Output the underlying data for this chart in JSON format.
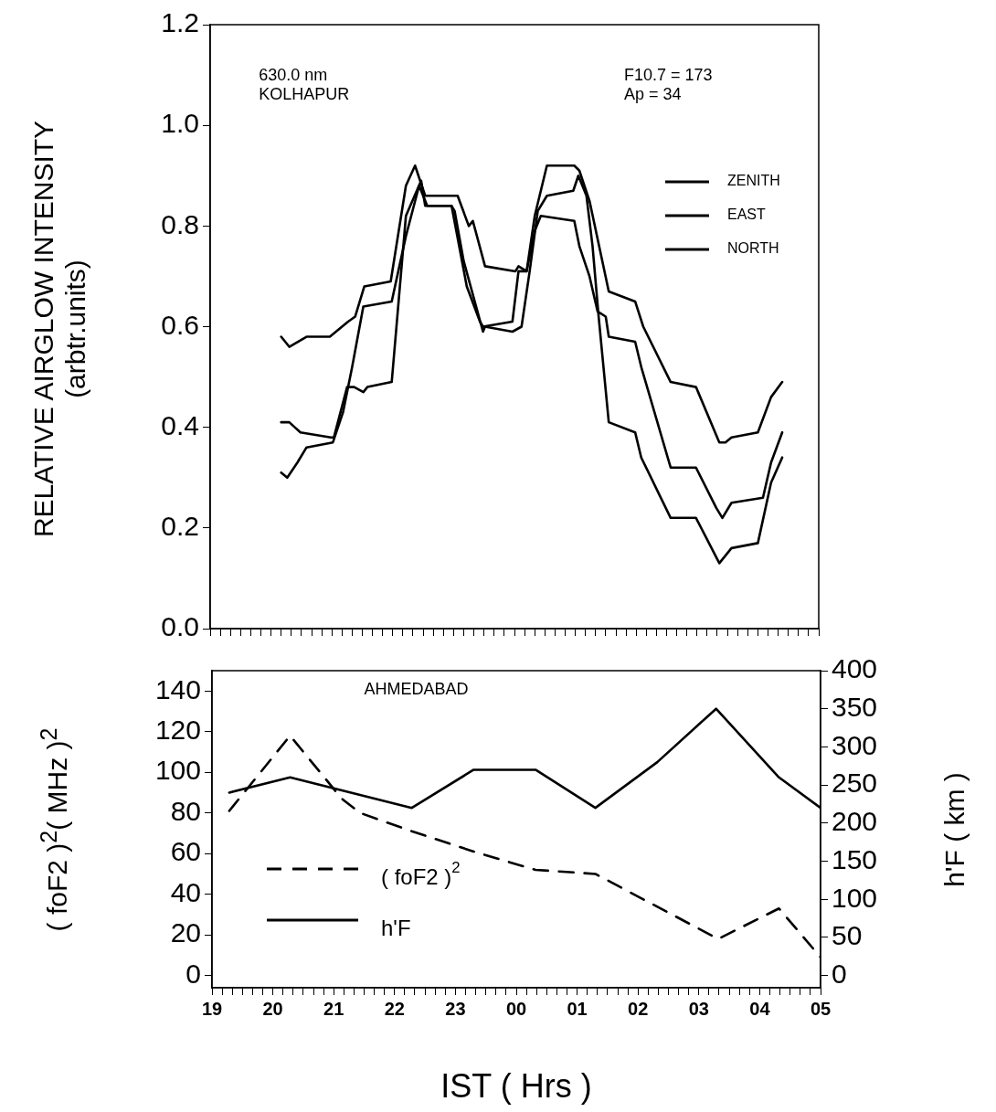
{
  "chart_data": [
    {
      "type": "line",
      "ylabel": "RELATIVE AIRGLOW INTENSITY\n(arbtr.units)",
      "annotations": [
        "630.0 nm\nKOLHAPUR",
        "F10.7 = 173\nAp = 34"
      ],
      "legend": "top right",
      "tick_labels": "y",
      "xlim": [
        "2000-01-01T19:00",
        "2000-01-02T05:00"
      ],
      "ylim": [
        0,
        1.2
      ],
      "yticks": [
        {
          "value": 0,
          "label": "0.0"
        },
        0.2,
        0.4,
        0.6,
        0.8,
        {
          "value": 1,
          "label": "1.0"
        },
        1.2
      ],
      "xticks": [
        {
          "value": "2000-01-01T19:00",
          "label": null
        },
        {
          "value": "2000-01-01T19:10",
          "label": null
        },
        {
          "value": "2000-01-01T19:20",
          "label": null
        },
        {
          "value": "2000-01-01T19:30",
          "label": null
        },
        {
          "value": "2000-01-01T19:40",
          "label": null
        },
        {
          "value": "2000-01-01T19:50",
          "label": null
        },
        {
          "value": "2000-01-01T20:00",
          "label": null
        },
        {
          "value": "2000-01-01T20:10",
          "label": null
        },
        {
          "value": "2000-01-01T20:20",
          "label": null
        },
        {
          "value": "2000-01-01T20:30",
          "label": null
        },
        {
          "value": "2000-01-01T20:40",
          "label": null
        },
        {
          "value": "2000-01-01T20:50",
          "label": null
        },
        {
          "value": "2000-01-01T21:00",
          "label": null
        },
        {
          "value": "2000-01-01T21:10",
          "label": null
        },
        {
          "value": "2000-01-01T21:20",
          "label": null
        },
        {
          "value": "2000-01-01T21:30",
          "label": null
        },
        {
          "value": "2000-01-01T21:40",
          "label": null
        },
        {
          "value": "2000-01-01T21:50",
          "label": null
        },
        {
          "value": "2000-01-01T22:00",
          "label": null
        },
        {
          "value": "2000-01-01T22:10",
          "label": null
        },
        {
          "value": "2000-01-01T22:20",
          "label": null
        },
        {
          "value": "2000-01-01T22:30",
          "label": null
        },
        {
          "value": "2000-01-01T22:40",
          "label": null
        },
        {
          "value": "2000-01-01T22:50",
          "label": null
        },
        {
          "value": "2000-01-01T23:00",
          "label": null
        },
        {
          "value": "2000-01-01T23:10",
          "label": null
        },
        {
          "value": "2000-01-01T23:20",
          "label": null
        },
        {
          "value": "2000-01-01T23:30",
          "label": null
        },
        {
          "value": "2000-01-01T23:40",
          "label": null
        },
        {
          "value": "2000-01-01T23:50",
          "label": null
        },
        {
          "value": "2000-01-02T00:00",
          "label": null
        },
        {
          "value": "2000-01-02T00:10",
          "label": null
        },
        {
          "value": "2000-01-02T00:20",
          "label": null
        },
        {
          "value": "2000-01-02T00:30",
          "label": null
        },
        {
          "value": "2000-01-02T00:40",
          "label": null
        },
        {
          "value": "2000-01-02T00:50",
          "label": null
        },
        {
          "value": "2000-01-02T01:00",
          "label": null
        },
        {
          "value": "2000-01-02T01:10",
          "label": null
        },
        {
          "value": "2000-01-02T01:20",
          "label": null
        },
        {
          "value": "2000-01-02T01:30",
          "label": null
        },
        {
          "value": "2000-01-02T01:40",
          "label": null
        },
        {
          "value": "2000-01-02T01:50",
          "label": null
        },
        {
          "value": "2000-01-02T02:00",
          "label": null
        },
        {
          "value": "2000-01-02T02:10",
          "label": null
        },
        {
          "value": "2000-01-02T02:20",
          "label": null
        },
        {
          "value": "2000-01-02T02:30",
          "label": null
        },
        {
          "value": "2000-01-02T02:40",
          "label": null
        },
        {
          "value": "2000-01-02T02:50",
          "label": null
        },
        {
          "value": "2000-01-02T03:00",
          "label": null
        },
        {
          "value": "2000-01-02T03:10",
          "label": null
        },
        {
          "value": "2000-01-02T03:20",
          "label": null
        },
        {
          "value": "2000-01-02T03:30",
          "label": null
        },
        {
          "value": "2000-01-02T03:40",
          "label": null
        },
        {
          "value": "2000-01-02T03:50",
          "label": null
        },
        {
          "value": "2000-01-02T04:00",
          "label": null
        },
        {
          "value": "2000-01-02T04:10",
          "label": null
        },
        {
          "value": "2000-01-02T04:20",
          "label": null
        },
        {
          "value": "2000-01-02T04:30",
          "label": null
        },
        {
          "value": "2000-01-02T04:40",
          "label": null
        },
        {
          "value": "2000-01-02T04:50",
          "label": null
        },
        {
          "value": "2000-01-02T05:00",
          "label": null
        }
      ],
      "series": [
        {
          "name": "ZENITH",
          "color": "#000000",
          "x": [
            "2000-01-01T20:10",
            "2000-01-01T20:18",
            "2000-01-01T20:35",
            "2000-01-01T20:58",
            "2000-01-01T21:16",
            "2000-01-01T21:23",
            "2000-01-01T21:32",
            "2000-01-01T21:58",
            "2000-01-01T22:13",
            "2000-01-01T22:22",
            "2000-01-01T22:32",
            "2000-01-01T23:04",
            "2000-01-01T23:15",
            "2000-01-01T23:19",
            "2000-01-01T23:31",
            "2000-01-02T00:01",
            "2000-01-02T00:04",
            "2000-01-02T00:12",
            "2000-01-02T00:20",
            "2000-01-02T00:32",
            "2000-01-02T00:59",
            "2000-01-02T01:04",
            "2000-01-02T01:14",
            "2000-01-02T01:33",
            "2000-01-02T01:59",
            "2000-01-02T02:07",
            "2000-01-02T02:34",
            "2000-01-02T02:59",
            "2000-01-02T03:22",
            "2000-01-02T03:28",
            "2000-01-02T03:34",
            "2000-01-02T04:00",
            "2000-01-02T04:13",
            "2000-01-02T04:24"
          ],
          "values": [
            0.58,
            0.56,
            0.58,
            0.58,
            0.61,
            0.62,
            0.68,
            0.69,
            0.88,
            0.92,
            0.86,
            0.86,
            0.8,
            0.81,
            0.72,
            0.71,
            0.72,
            0.71,
            0.82,
            0.92,
            0.92,
            0.91,
            0.85,
            0.67,
            0.65,
            0.6,
            0.49,
            0.48,
            0.37,
            0.37,
            0.38,
            0.39,
            0.46,
            0.49
          ]
        },
        {
          "name": "EAST",
          "color": "#000000",
          "x": [
            "2000-01-01T20:10",
            "2000-01-01T20:16",
            "2000-01-01T20:26",
            "2000-01-01T20:35",
            "2000-01-01T21:01",
            "2000-01-01T21:11",
            "2000-01-01T21:20",
            "2000-01-01T21:31",
            "2000-01-01T21:59",
            "2000-01-01T22:13",
            "2000-01-01T22:26",
            "2000-01-01T22:34",
            "2000-01-01T22:58",
            "2000-01-01T23:01",
            "2000-01-01T23:10",
            "2000-01-01T23:29",
            "2000-01-01T23:31",
            "2000-01-01T23:58",
            "2000-01-02T00:07",
            "2000-01-02T00:15",
            "2000-01-02T00:23",
            "2000-01-02T00:32",
            "2000-01-02T00:58",
            "2000-01-02T01:03",
            "2000-01-02T01:11",
            "2000-01-02T01:17",
            "2000-01-02T01:23",
            "2000-01-02T01:33",
            "2000-01-02T01:59",
            "2000-01-02T02:05",
            "2000-01-02T02:34",
            "2000-01-02T02:59",
            "2000-01-02T03:22",
            "2000-01-02T03:34",
            "2000-01-02T04:00",
            "2000-01-02T04:13",
            "2000-01-02T04:24"
          ],
          "values": [
            0.31,
            0.3,
            0.33,
            0.36,
            0.37,
            0.43,
            0.52,
            0.64,
            0.65,
            0.78,
            0.88,
            0.84,
            0.84,
            0.83,
            0.73,
            0.59,
            0.6,
            0.59,
            0.6,
            0.71,
            0.83,
            0.86,
            0.87,
            0.9,
            0.86,
            0.76,
            0.62,
            0.41,
            0.39,
            0.34,
            0.22,
            0.22,
            0.13,
            0.16,
            0.17,
            0.29,
            0.34
          ]
        },
        {
          "name": "NORTH",
          "color": "#000000",
          "x": [
            "2000-01-01T20:10",
            "2000-01-01T20:18",
            "2000-01-01T20:29",
            "2000-01-01T20:59",
            "2000-01-01T21:02",
            "2000-01-01T21:15",
            "2000-01-01T21:22",
            "2000-01-01T21:31",
            "2000-01-01T21:35",
            "2000-01-01T21:59",
            "2000-01-01T22:13",
            "2000-01-01T22:28",
            "2000-01-01T22:32",
            "2000-01-01T22:58",
            "2000-01-01T23:13",
            "2000-01-01T23:26",
            "2000-01-01T23:29",
            "2000-01-01T23:58",
            "2000-01-02T00:04",
            "2000-01-02T00:12",
            "2000-01-02T00:20",
            "2000-01-02T00:26",
            "2000-01-02T00:59",
            "2000-01-02T01:04",
            "2000-01-02T01:14",
            "2000-01-02T01:22",
            "2000-01-02T01:30",
            "2000-01-02T01:33",
            "2000-01-02T01:59",
            "2000-01-02T02:05",
            "2000-01-02T02:34",
            "2000-01-02T02:59",
            "2000-01-02T03:19",
            "2000-01-02T03:25",
            "2000-01-02T03:34",
            "2000-01-02T04:05",
            "2000-01-02T04:13",
            "2000-01-02T04:24"
          ],
          "values": [
            0.41,
            0.41,
            0.39,
            0.38,
            0.38,
            0.48,
            0.48,
            0.47,
            0.48,
            0.49,
            0.82,
            0.89,
            0.84,
            0.84,
            0.68,
            0.61,
            0.6,
            0.61,
            0.71,
            0.71,
            0.79,
            0.82,
            0.81,
            0.76,
            0.7,
            0.63,
            0.62,
            0.58,
            0.57,
            0.52,
            0.32,
            0.32,
            0.24,
            0.22,
            0.25,
            0.26,
            0.33,
            0.39
          ]
        }
      ]
    },
    {
      "type": "line",
      "xlabel": "IST ( Hrs )",
      "ylabel": "( foF2 )$^{2}$( MHz )$^{2}$",
      "y2label": "h'F ( km )",
      "annotations": [
        "AHMEDABAD"
      ],
      "legend": "bottom left",
      "xlim": [
        "2000-01-01T19:00",
        "2000-01-02T05:00"
      ],
      "ylim": [
        -6,
        150
      ],
      "y2lim": [
        -16,
        400
      ],
      "yticks": [
        0,
        20,
        40,
        60,
        80,
        100,
        120,
        140
      ],
      "y2ticks": [
        0,
        50,
        100,
        150,
        200,
        250,
        300,
        350,
        400
      ],
      "xticks": [
        {
          "value": "2000-01-01T19:00",
          "label": "19"
        },
        {
          "value": "2000-01-01T19:10",
          "label": null
        },
        {
          "value": "2000-01-01T19:20",
          "label": null
        },
        {
          "value": "2000-01-01T19:30",
          "label": null
        },
        {
          "value": "2000-01-01T19:40",
          "label": null
        },
        {
          "value": "2000-01-01T19:50",
          "label": null
        },
        {
          "value": "2000-01-01T20:00",
          "label": "20"
        },
        {
          "value": "2000-01-01T20:10",
          "label": null
        },
        {
          "value": "2000-01-01T20:20",
          "label": null
        },
        {
          "value": "2000-01-01T20:30",
          "label": null
        },
        {
          "value": "2000-01-01T20:40",
          "label": null
        },
        {
          "value": "2000-01-01T20:50",
          "label": null
        },
        {
          "value": "2000-01-01T21:00",
          "label": "21"
        },
        {
          "value": "2000-01-01T21:10",
          "label": null
        },
        {
          "value": "2000-01-01T21:20",
          "label": null
        },
        {
          "value": "2000-01-01T21:30",
          "label": null
        },
        {
          "value": "2000-01-01T21:40",
          "label": null
        },
        {
          "value": "2000-01-01T21:50",
          "label": null
        },
        {
          "value": "2000-01-01T22:00",
          "label": "22"
        },
        {
          "value": "2000-01-01T22:10",
          "label": null
        },
        {
          "value": "2000-01-01T22:20",
          "label": null
        },
        {
          "value": "2000-01-01T22:30",
          "label": null
        },
        {
          "value": "2000-01-01T22:40",
          "label": null
        },
        {
          "value": "2000-01-01T22:50",
          "label": null
        },
        {
          "value": "2000-01-01T23:00",
          "label": "23"
        },
        {
          "value": "2000-01-01T23:10",
          "label": null
        },
        {
          "value": "2000-01-01T23:20",
          "label": null
        },
        {
          "value": "2000-01-01T23:30",
          "label": null
        },
        {
          "value": "2000-01-01T23:40",
          "label": null
        },
        {
          "value": "2000-01-01T23:50",
          "label": null
        },
        {
          "value": "2000-01-02T00:00",
          "label": "00"
        },
        {
          "value": "2000-01-02T00:10",
          "label": null
        },
        {
          "value": "2000-01-02T00:20",
          "label": null
        },
        {
          "value": "2000-01-02T00:30",
          "label": null
        },
        {
          "value": "2000-01-02T00:40",
          "label": null
        },
        {
          "value": "2000-01-02T00:50",
          "label": null
        },
        {
          "value": "2000-01-02T01:00",
          "label": "01"
        },
        {
          "value": "2000-01-02T01:10",
          "label": null
        },
        {
          "value": "2000-01-02T01:20",
          "label": null
        },
        {
          "value": "2000-01-02T01:30",
          "label": null
        },
        {
          "value": "2000-01-02T01:40",
          "label": null
        },
        {
          "value": "2000-01-02T01:50",
          "label": null
        },
        {
          "value": "2000-01-02T02:00",
          "label": "02"
        },
        {
          "value": "2000-01-02T02:10",
          "label": null
        },
        {
          "value": "2000-01-02T02:20",
          "label": null
        },
        {
          "value": "2000-01-02T02:30",
          "label": null
        },
        {
          "value": "2000-01-02T02:40",
          "label": null
        },
        {
          "value": "2000-01-02T02:50",
          "label": null
        },
        {
          "value": "2000-01-02T03:00",
          "label": "03"
        },
        {
          "value": "2000-01-02T03:10",
          "label": null
        },
        {
          "value": "2000-01-02T03:20",
          "label": null
        },
        {
          "value": "2000-01-02T03:30",
          "label": null
        },
        {
          "value": "2000-01-02T03:40",
          "label": null
        },
        {
          "value": "2000-01-02T03:50",
          "label": null
        },
        {
          "value": "2000-01-02T04:00",
          "label": "04"
        },
        {
          "value": "2000-01-02T04:10",
          "label": null
        },
        {
          "value": "2000-01-02T04:20",
          "label": null
        },
        {
          "value": "2000-01-02T04:30",
          "label": null
        },
        {
          "value": "2000-01-02T04:40",
          "label": null
        },
        {
          "value": "2000-01-02T04:50",
          "label": null
        },
        {
          "value": "2000-01-02T05:00",
          "label": "05"
        }
      ],
      "series": [
        {
          "name": "( foF2 )$^{2}$",
          "color": "#000000",
          "line_style": "dashed",
          "x": [
            "2000-01-01T19:17",
            "2000-01-01T20:17",
            "2000-01-01T21:08",
            "2000-01-01T21:26",
            "2000-01-01T22:17",
            "2000-01-01T23:18",
            "2000-01-02T00:19",
            "2000-01-02T01:18",
            "2000-01-02T03:19",
            "2000-01-02T04:19",
            "2000-01-02T05:00"
          ],
          "values": [
            81,
            118,
            87,
            80,
            71,
            61,
            52,
            50,
            18,
            33,
            9
          ]
        },
        {
          "name": "h'F",
          "color": "#000000",
          "axis": "y2",
          "x": [
            "2000-01-01T19:17",
            "2000-01-01T20:17",
            "2000-01-01T22:17",
            "2000-01-01T23:18",
            "2000-01-02T00:19",
            "2000-01-02T01:18",
            "2000-01-02T02:19",
            "2000-01-02T03:17",
            "2000-01-02T04:19",
            "2000-01-02T05:00"
          ],
          "values": [
            240,
            260,
            220,
            270,
            270,
            220,
            280,
            350,
            260,
            220
          ]
        }
      ]
    }
  ]
}
